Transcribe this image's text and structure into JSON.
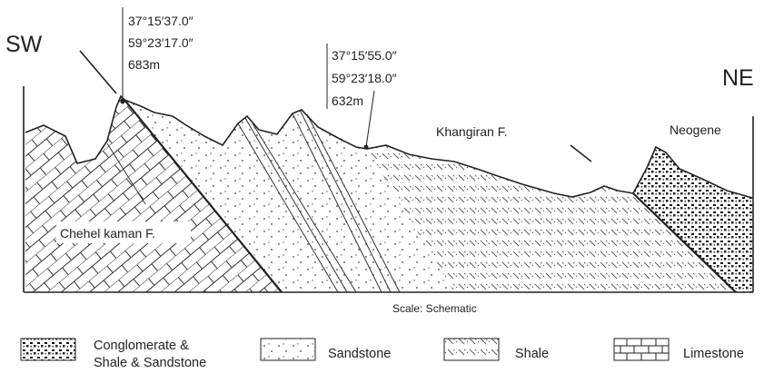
{
  "directions": {
    "left": "SW",
    "right": "NE"
  },
  "points": [
    {
      "lat": "37°15′37.0″",
      "lon": "59°23′17.0″",
      "elev": "683m"
    },
    {
      "lat": "37°15′55.0″",
      "lon": "59°23′18.0″",
      "elev": "632m"
    }
  ],
  "formations": {
    "chehel_kaman": "Chehel kaman F.",
    "khangiran": "Khangiran F.",
    "neogene": "Neogene"
  },
  "scale_text": "Scale: Schematic",
  "legend": [
    {
      "pattern": "conglomerate",
      "lines": [
        "Conglomerate &",
        "Shale & Sandstone"
      ]
    },
    {
      "pattern": "sandstone",
      "lines": [
        "Sandstone"
      ]
    },
    {
      "pattern": "shale",
      "lines": [
        "Shale"
      ]
    },
    {
      "pattern": "limestone",
      "lines": [
        "Limestone"
      ]
    }
  ]
}
